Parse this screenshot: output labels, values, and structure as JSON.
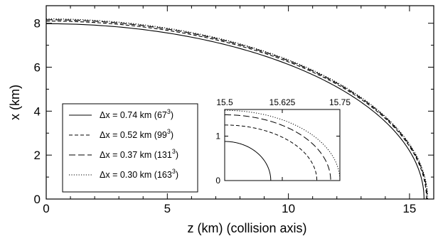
{
  "chart_data": [
    {
      "type": "line",
      "title": "",
      "xlabel": "z (km) (collision axis)",
      "ylabel": "x (km)",
      "xlim": [
        0,
        16
      ],
      "ylim": [
        0,
        8.8
      ],
      "x_ticks": [
        "0",
        "5",
        "10",
        "15"
      ],
      "y_ticks": [
        "0",
        "2",
        "4",
        "6",
        "8"
      ],
      "grid": false,
      "legend_position": "left",
      "legend": [
        {
          "label": "Δx = 0.74 km (67",
          "sup": "3",
          "close": ")",
          "style": "solid"
        },
        {
          "label": "Δx = 0.52 km (99",
          "sup": "3",
          "close": ")",
          "style": "dashed"
        },
        {
          "label": "Δx = 0.37 km (131",
          "sup": "3",
          "close": ")",
          "style": "longdash"
        },
        {
          "label": "Δx = 0.30 km (163",
          "sup": "3",
          "close": ")",
          "style": "dotted"
        }
      ],
      "series": [
        {
          "style": "solid",
          "z0": 15.6,
          "x0": 7.98
        },
        {
          "style": "dashed",
          "z0": 15.7,
          "x0": 8.1
        },
        {
          "style": "longdash",
          "z0": 15.73,
          "x0": 8.16
        },
        {
          "style": "dotted",
          "z0": 15.75,
          "x0": 8.2
        }
      ]
    },
    {
      "type": "line",
      "title": "",
      "inset": true,
      "xlim": [
        15.5,
        15.75
      ],
      "ylim": [
        0,
        1.6
      ],
      "x_ticks": [
        "15.5",
        "15.625",
        "15.75"
      ],
      "y_ticks": [
        "0",
        "1"
      ],
      "series": [
        {
          "style": "solid",
          "x0": 0.88,
          "z_end": 15.6
        },
        {
          "style": "dashed",
          "x0": 1.25,
          "z_end": 15.7
        },
        {
          "style": "longdash",
          "x0": 1.48,
          "z_end": 15.73
        },
        {
          "style": "dotted",
          "x0": 1.58,
          "z_end": 15.75
        }
      ]
    }
  ]
}
